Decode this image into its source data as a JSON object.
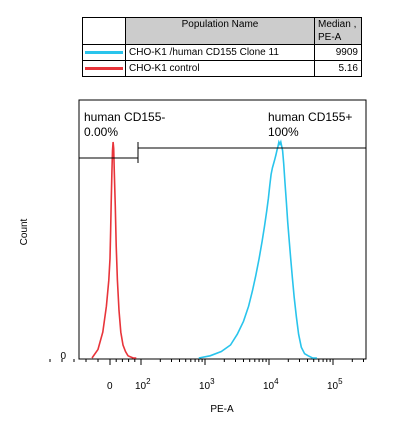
{
  "legend": {
    "header_name": "Population Name",
    "header_median_line1": "Median ,",
    "header_median_line2": "PE-A",
    "rows": [
      {
        "name": "CHO-K1 /human CD155 Clone 11",
        "median": "9909",
        "color": "#29c4ec"
      },
      {
        "name": "CHO-K1 control",
        "median": "5.16",
        "color": "#e8343a"
      }
    ]
  },
  "gates": [
    {
      "label": "human CD155-",
      "percent": "0.00%"
    },
    {
      "label": "human CD155+",
      "percent": "100%"
    }
  ],
  "chart_data": {
    "type": "area",
    "xlabel": "PE-A",
    "ylabel": "Count",
    "x_scale": "biexponential",
    "y_ticks": [
      "0"
    ],
    "x_ticks": [
      {
        "value": 0,
        "label": "0"
      },
      {
        "value": 100,
        "label": "10^2"
      },
      {
        "value": 1000,
        "label": "10^3"
      },
      {
        "value": 10000,
        "label": "10^4"
      },
      {
        "value": 100000,
        "label": "10^5"
      }
    ],
    "series": [
      {
        "name": "CHO-K1 /human CD155 Clone 11",
        "color": "#29c4ec",
        "x": [
          800,
          1200,
          1800,
          2500,
          3200,
          4000,
          4800,
          5500,
          6200,
          7000,
          7800,
          8500,
          9200,
          9800,
          10300,
          10800,
          11300,
          11800,
          12300,
          12800,
          13300,
          13800,
          14300,
          14800,
          15300,
          15800,
          16300,
          17000,
          17800,
          18700,
          19600,
          20600,
          21800,
          23200,
          24800,
          26800,
          29000,
          32000,
          36000,
          41000,
          48000,
          56000
        ],
        "y": [
          0,
          1,
          3,
          6,
          11,
          17,
          24,
          31,
          38,
          46,
          54,
          61,
          68,
          74,
          80,
          85,
          88,
          90,
          92,
          94,
          96,
          98,
          100,
          99,
          100,
          98,
          96,
          90,
          81,
          72,
          63,
          55,
          46,
          37,
          28,
          19,
          11,
          5,
          2,
          1,
          0,
          0
        ]
      },
      {
        "name": "CHO-K1 control",
        "color": "#e8343a",
        "x": [
          -30,
          -20,
          -12,
          -6,
          -2,
          0,
          2,
          4,
          6,
          8,
          10,
          12,
          14,
          17,
          20,
          24,
          29,
          35,
          42,
          50,
          58,
          66,
          75,
          85
        ],
        "y": [
          0,
          4,
          12,
          24,
          36,
          46,
          58,
          72,
          86,
          96,
          100,
          97,
          86,
          70,
          52,
          36,
          22,
          12,
          6,
          3,
          1,
          0.5,
          0,
          0
        ]
      }
    ]
  }
}
